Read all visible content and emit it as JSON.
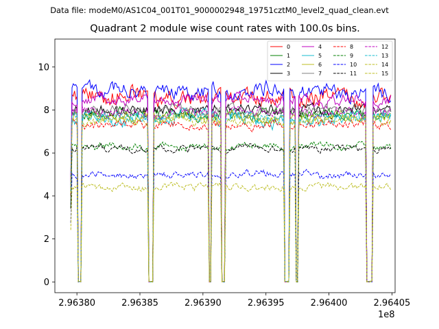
{
  "chart_data": {
    "type": "line",
    "suptitle": "Data file: modeM0/AS1C04_001T01_9000002948_19751cztM0_level2_quad_clean.evt",
    "title": "Quadrant 2 module wise count rates with 100.0s bins.",
    "xlabel": "",
    "ylabel": "",
    "x_offset_label": "1e8",
    "xlim": [
      2.9637825,
      2.9640525
    ],
    "ylim": [
      -0.5,
      11.3
    ],
    "xticks": [
      2.9638,
      2.96385,
      2.9639,
      2.96395,
      2.964,
      2.96405
    ],
    "xtick_labels": [
      "2.96380",
      "2.96385",
      "2.96390",
      "2.96395",
      "2.96400",
      "2.96405"
    ],
    "yticks": [
      0,
      2,
      4,
      6,
      8,
      10
    ],
    "ytick_labels": [
      "0",
      "2",
      "4",
      "6",
      "8",
      "10"
    ],
    "grid": false,
    "legend_position": "top-right",
    "bin_size_s": 100,
    "data_start": 2.96379511,
    "data_end": 2.96404948,
    "gaps": [
      [
        2.96380067,
        2.96380345
      ],
      [
        2.96385645,
        2.96386072
      ],
      [
        2.96390457,
        2.96390685
      ],
      [
        2.96391461,
        2.96391822
      ],
      [
        2.96396445,
        2.96396925
      ],
      [
        2.96397346,
        2.96397607
      ],
      [
        2.96402891,
        2.96403521
      ]
    ],
    "series": [
      {
        "name": "0",
        "color": "#ff0000",
        "dash": "solid",
        "level": 8.6,
        "noise": 0.75
      },
      {
        "name": "1",
        "color": "#008000",
        "dash": "solid",
        "level": 7.8,
        "noise": 0.45
      },
      {
        "name": "2",
        "color": "#0000ff",
        "dash": "solid",
        "level": 8.9,
        "noise": 0.65
      },
      {
        "name": "3",
        "color": "#000000",
        "dash": "solid",
        "level": 8.0,
        "noise": 0.45
      },
      {
        "name": "4",
        "color": "#bf00bf",
        "dash": "solid",
        "level": 8.5,
        "noise": 0.5
      },
      {
        "name": "5",
        "color": "#17becf",
        "dash": "solid",
        "level": 7.6,
        "noise": 0.6
      },
      {
        "name": "6",
        "color": "#bcbd22",
        "dash": "solid",
        "level": 7.7,
        "noise": 0.45
      },
      {
        "name": "7",
        "color": "#7f7f7f",
        "dash": "solid",
        "level": 8.0,
        "noise": 0.4
      },
      {
        "name": "8",
        "color": "#ff0000",
        "dash": "dashed",
        "level": 7.3,
        "noise": 0.35
      },
      {
        "name": "9",
        "color": "#008000",
        "dash": "dashed",
        "level": 6.3,
        "noise": 0.3
      },
      {
        "name": "10",
        "color": "#0000ff",
        "dash": "dashed",
        "level": 5.0,
        "noise": 0.3
      },
      {
        "name": "11",
        "color": "#000000",
        "dash": "dashed",
        "level": 6.2,
        "noise": 0.3
      },
      {
        "name": "12",
        "color": "#bf00bf",
        "dash": "dashed",
        "level": 7.9,
        "noise": 0.4
      },
      {
        "name": "13",
        "color": "#17becf",
        "dash": "dashed",
        "level": 7.7,
        "noise": 0.4
      },
      {
        "name": "14",
        "color": "#bcbd22",
        "dash": "dashed",
        "level": 4.4,
        "noise": 0.3
      },
      {
        "name": "15",
        "color": "#bcbd22",
        "dash": "dashed",
        "level": 7.5,
        "noise": 0.4
      }
    ]
  }
}
